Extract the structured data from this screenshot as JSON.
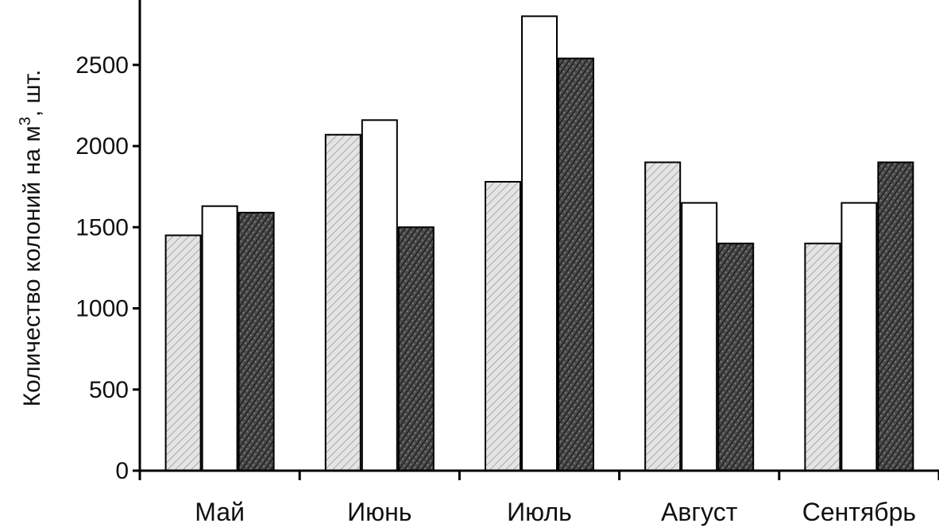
{
  "chart_data": {
    "type": "bar",
    "categories": [
      "Май",
      "Июнь",
      "Июль",
      "Август",
      "Сентябрь"
    ],
    "series": [
      {
        "values": [
          1450,
          2070,
          1780,
          1900,
          1400
        ],
        "color": "#d2d2d2"
      },
      {
        "values": [
          1630,
          2160,
          2800,
          1650,
          1650
        ],
        "color": "#ffffff"
      },
      {
        "values": [
          1590,
          1500,
          2540,
          1400,
          1900
        ],
        "color": "#555555"
      }
    ],
    "ylabel_main": "Количество колоний на м",
    "ylabel_sup": "3",
    "ylabel_tail": ", шт.",
    "ylim": [
      0,
      2900
    ],
    "yticks": [
      "0",
      "500",
      "1000",
      "1500",
      "2000",
      "2500"
    ],
    "tick_values": [
      0,
      500,
      1000,
      1500,
      2000,
      2500
    ],
    "grid": false,
    "legend": "none"
  }
}
